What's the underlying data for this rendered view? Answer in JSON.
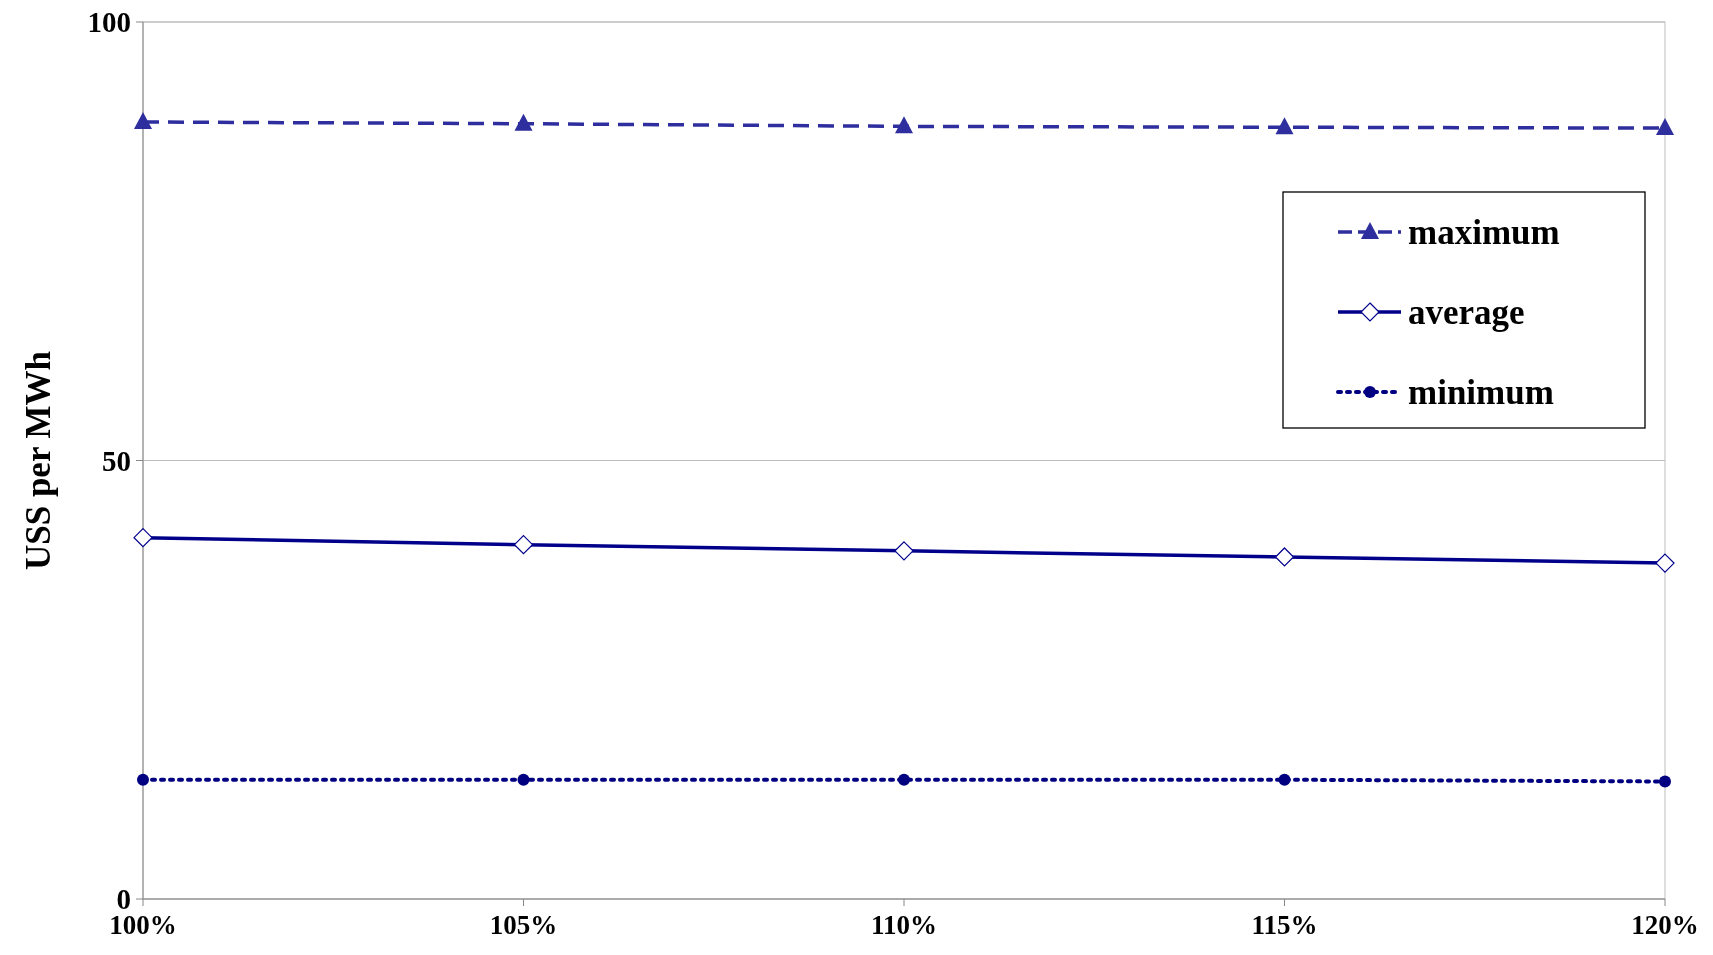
{
  "chart_data": {
    "type": "line",
    "ylabel": "USS per MWh",
    "categories": [
      "100%",
      "105%",
      "110%",
      "115%",
      "120%"
    ],
    "series": [
      {
        "name": "maximum",
        "color": "#2e2e9e",
        "marker": "triangle",
        "line_style": "dashed",
        "values": [
          88.6,
          88.4,
          88.1,
          88.0,
          87.9
        ]
      },
      {
        "name": "average",
        "color": "#00008b",
        "marker": "diamond",
        "line_style": "solid",
        "values": [
          41.2,
          40.4,
          39.7,
          39.0,
          38.3
        ]
      },
      {
        "name": "minimum",
        "color": "#000080",
        "marker": "circle",
        "line_style": "dotted",
        "values": [
          13.6,
          13.6,
          13.6,
          13.6,
          13.4
        ]
      }
    ],
    "ylim": [
      0,
      100
    ],
    "yticks": [
      0,
      50,
      100
    ],
    "grid": "y",
    "legend": "top right"
  }
}
